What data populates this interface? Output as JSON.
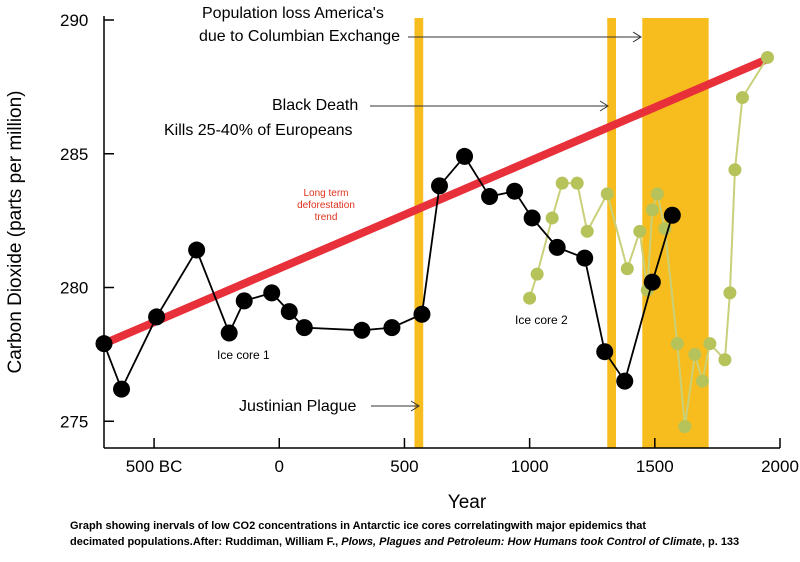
{
  "chart_data": {
    "type": "line",
    "xlabel": "Year",
    "ylabel": "Carbon Dioxide (parts per million)",
    "xlim": [
      -700,
      2000
    ],
    "ylim": [
      274,
      290
    ],
    "x_ticks": [
      {
        "value": -500,
        "label": "500 BC"
      },
      {
        "value": 0,
        "label": "0"
      },
      {
        "value": 500,
        "label": "500"
      },
      {
        "value": 1000,
        "label": "1000"
      },
      {
        "value": 1500,
        "label": "1500"
      },
      {
        "value": 2000,
        "label": "2000"
      }
    ],
    "y_ticks": [
      {
        "value": 275,
        "label": "275"
      },
      {
        "value": 280,
        "label": "280"
      },
      {
        "value": 285,
        "label": "285"
      },
      {
        "value": 290,
        "label": "290"
      }
    ],
    "bands": [
      {
        "x0": 540,
        "x1": 575,
        "color": "#f7bd1e"
      },
      {
        "x0": 1310,
        "x1": 1345,
        "color": "#f7bd1e"
      },
      {
        "x0": 1450,
        "x1": 1715,
        "color": "#f7bd1e"
      }
    ],
    "trend": {
      "x0": -700,
      "y0": 277.9,
      "x1": 1940,
      "y1": 288.5,
      "color": "#e8303a",
      "label_lines": [
        "Long term",
        "deforestation",
        "trend"
      ]
    },
    "series": [
      {
        "name": "Ice core 1",
        "color": "#000000",
        "marker_color": "#000000",
        "points": [
          [
            -700,
            277.9
          ],
          [
            -630,
            276.2
          ],
          [
            -490,
            278.9
          ],
          [
            -330,
            281.4
          ],
          [
            -200,
            278.3
          ],
          [
            -140,
            279.5
          ],
          [
            -30,
            279.8
          ],
          [
            40,
            279.1
          ],
          [
            100,
            278.5
          ],
          [
            330,
            278.4
          ],
          [
            450,
            278.5
          ],
          [
            570,
            279.0
          ],
          [
            640,
            283.8
          ],
          [
            740,
            284.9
          ],
          [
            840,
            283.4
          ],
          [
            940,
            283.6
          ],
          [
            1010,
            282.6
          ],
          [
            1110,
            281.5
          ],
          [
            1220,
            281.1
          ],
          [
            1300,
            277.6
          ],
          [
            1380,
            276.5
          ],
          [
            1490,
            280.2
          ],
          [
            1570,
            282.7
          ]
        ]
      },
      {
        "name": "Ice core 2",
        "color": "#c9d07a",
        "marker_color": "#b6c25a",
        "points": [
          [
            1000,
            279.6
          ],
          [
            1030,
            280.5
          ],
          [
            1090,
            282.6
          ],
          [
            1130,
            283.9
          ],
          [
            1190,
            283.9
          ],
          [
            1230,
            282.1
          ],
          [
            1310,
            283.5
          ],
          [
            1390,
            280.7
          ],
          [
            1440,
            282.1
          ],
          [
            1470,
            279.9
          ],
          [
            1490,
            282.9
          ],
          [
            1510,
            283.5
          ],
          [
            1540,
            282.2
          ],
          [
            1590,
            277.9
          ],
          [
            1620,
            274.8
          ],
          [
            1660,
            277.5
          ],
          [
            1690,
            276.5
          ],
          [
            1720,
            277.9
          ],
          [
            1780,
            277.3
          ],
          [
            1800,
            279.8
          ],
          [
            1820,
            284.4
          ],
          [
            1850,
            287.1
          ],
          [
            1950,
            288.6
          ]
        ]
      }
    ],
    "annotations": {
      "columbian_line1": "Population loss America's",
      "columbian_line2": "due to Columbian Exchange",
      "black_death_line1": "Black Death",
      "black_death_line2": "Kills 25-40% of Europeans",
      "justinian": "Justinian Plague",
      "ice_core_1": "Ice core 1",
      "ice_core_2": "Ice core 2"
    }
  },
  "caption": {
    "line1": "Graph showing inervals of low CO2 concentrations in Antarctic ice cores correlatingwith major epidemics that",
    "line2_prefix": "decimated populations.\u0013After: Ruddiman, William F., ",
    "line2_title": "Plows, Plagues and Petroleum: How Humans took Control of Climate",
    "line2_suffix": ", p. 133"
  }
}
